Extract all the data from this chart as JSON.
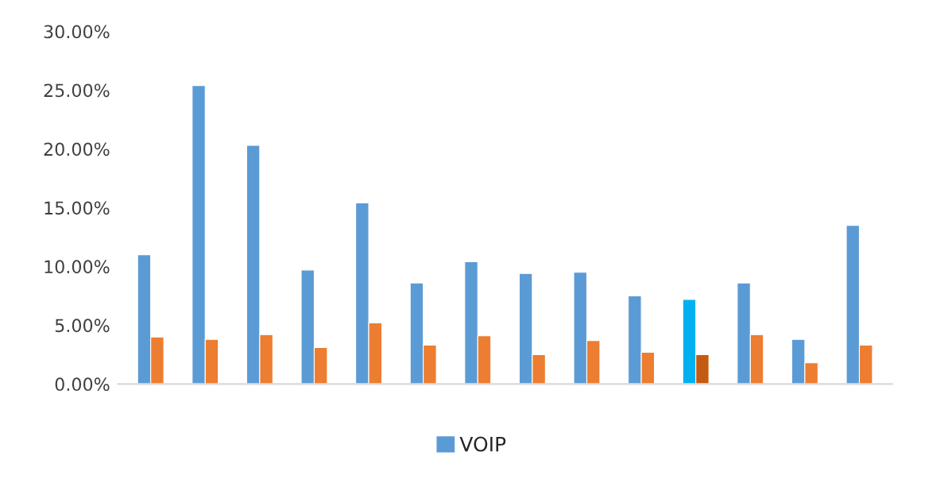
{
  "chart_data": {
    "type": "bar",
    "categories": [
      null,
      null,
      null,
      null,
      null,
      null,
      null,
      null,
      null,
      null,
      null,
      null,
      null,
      null
    ],
    "series": [
      {
        "name": "VOIP",
        "color": "#5b9bd5",
        "colors": [
          "#5b9bd5",
          "#5b9bd5",
          "#5b9bd5",
          "#5b9bd5",
          "#5b9bd5",
          "#5b9bd5",
          "#5b9bd5",
          "#5b9bd5",
          "#5b9bd5",
          "#5b9bd5",
          "#00b0f0",
          "#5b9bd5",
          "#5b9bd5",
          "#5b9bd5"
        ],
        "values": [
          11.0,
          25.4,
          20.3,
          9.7,
          15.4,
          8.6,
          10.4,
          9.4,
          9.5,
          7.5,
          7.2,
          8.6,
          3.8,
          13.5
        ]
      },
      {
        "color": "#ed7d31",
        "colors": [
          "#ed7d31",
          "#ed7d31",
          "#ed7d31",
          "#ed7d31",
          "#ed7d31",
          "#ed7d31",
          "#ed7d31",
          "#ed7d31",
          "#ed7d31",
          "#ed7d31",
          "#c55a11",
          "#ed7d31",
          "#ed7d31",
          "#ed7d31"
        ],
        "values": [
          4.0,
          3.8,
          4.2,
          3.1,
          5.2,
          3.3,
          4.1,
          2.5,
          3.7,
          2.7,
          2.5,
          4.2,
          1.8,
          3.3
        ]
      }
    ],
    "ylim": [
      0,
      30
    ],
    "yticks": [
      {
        "value": 0,
        "label": "0.00%"
      },
      {
        "value": 5,
        "label": "5.00%"
      },
      {
        "value": 10,
        "label": "10.00%"
      },
      {
        "value": 15,
        "label": "15.00%"
      },
      {
        "value": 20,
        "label": "20.00%"
      },
      {
        "value": 25,
        "label": "25.00%"
      },
      {
        "value": 30,
        "label": "30.00%"
      }
    ],
    "grid": false,
    "legend": "bottom"
  }
}
